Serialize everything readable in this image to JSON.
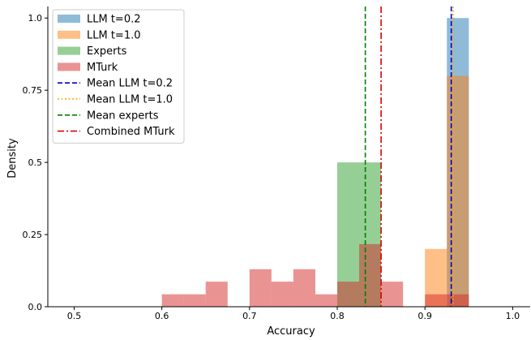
{
  "chart_data": {
    "type": "bar",
    "title": "",
    "xlabel": "Accuracy",
    "ylabel": "Density",
    "xlim": [
      0.47,
      1.02
    ],
    "ylim": [
      0,
      1.04
    ],
    "xticks": [
      0.5,
      0.6,
      0.7,
      0.8,
      0.9,
      1.0
    ],
    "xtick_labels": [
      "0.5",
      "0.6",
      "0.7",
      "0.8",
      "0.9",
      "1.0"
    ],
    "yticks": [
      0,
      0.25,
      0.5,
      0.75,
      1.0
    ],
    "ytick_labels": [
      "0.0",
      "0.25",
      "0.5",
      "0.75",
      "1.0"
    ],
    "grid": false,
    "legend_position": "top-left",
    "series": [
      {
        "name": "LLM t=0.2",
        "kind": "histogram",
        "color": "#1f77b4",
        "opacity": 0.5,
        "bins": [
          [
            0.925,
            0.95,
            1.0
          ]
        ]
      },
      {
        "name": "LLM t=1.0",
        "kind": "histogram",
        "color": "#ff7f0e",
        "opacity": 0.5,
        "bins": [
          [
            0.9,
            0.925,
            0.2
          ],
          [
            0.925,
            0.95,
            0.8
          ]
        ]
      },
      {
        "name": "Experts",
        "kind": "histogram",
        "color": "#2ca02c",
        "opacity": 0.5,
        "bins": [
          [
            0.8,
            0.85,
            0.5
          ]
        ]
      },
      {
        "name": "MTurk",
        "kind": "histogram",
        "color": "#d62728",
        "opacity": 0.5,
        "bins": [
          [
            0.6,
            0.625,
            0.043
          ],
          [
            0.625,
            0.65,
            0.043
          ],
          [
            0.65,
            0.675,
            0.087
          ],
          [
            0.7,
            0.725,
            0.13
          ],
          [
            0.725,
            0.75,
            0.087
          ],
          [
            0.75,
            0.775,
            0.13
          ],
          [
            0.775,
            0.8,
            0.043
          ],
          [
            0.8,
            0.825,
            0.087
          ],
          [
            0.825,
            0.85,
            0.217
          ],
          [
            0.85,
            0.875,
            0.087
          ],
          [
            0.9,
            0.925,
            0.043
          ],
          [
            0.925,
            0.95,
            0.043
          ]
        ]
      },
      {
        "name": "Mean LLM t=0.2",
        "kind": "vline",
        "x": 0.93,
        "color": "#0000cc",
        "dash": "dashed"
      },
      {
        "name": "Mean LLM t=1.0",
        "kind": "vline",
        "x": 0.932,
        "color": "#ffa500",
        "dash": "dotted"
      },
      {
        "name": "Mean experts",
        "kind": "vline",
        "x": 0.832,
        "color": "#008000",
        "dash": "dashed"
      },
      {
        "name": "Combined MTurk",
        "kind": "vline",
        "x": 0.85,
        "color": "#dd0000",
        "dash": "dashdot"
      }
    ]
  }
}
